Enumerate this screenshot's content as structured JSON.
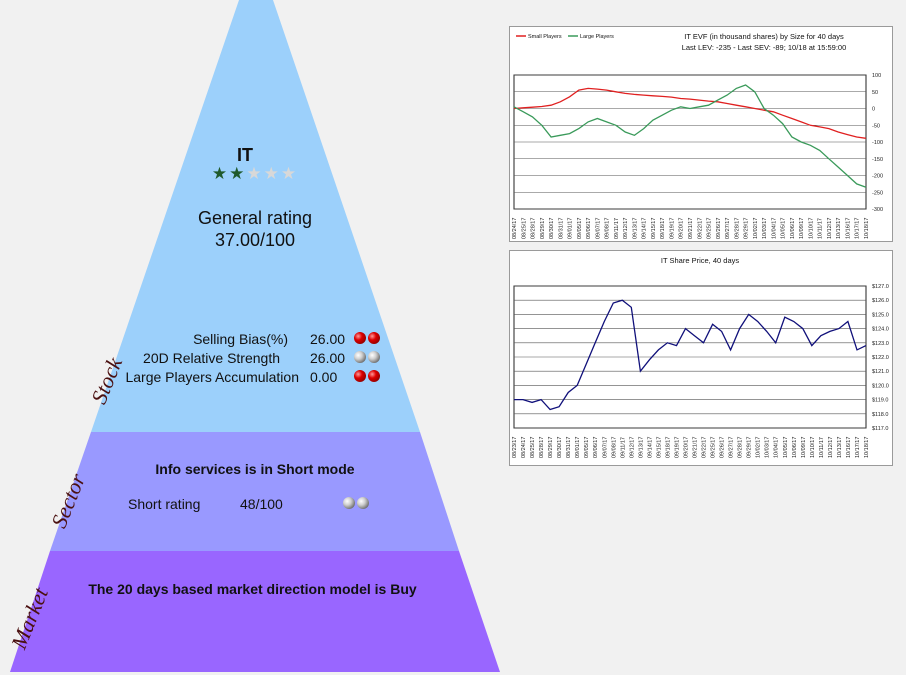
{
  "pyramid": {
    "ticker": "IT",
    "rating_stars": {
      "filled": 2,
      "total": 5,
      "filled_color": "#1f5a2c",
      "empty_color": "#d8d8d8"
    },
    "general_rating_label": "General rating",
    "general_rating_value": "37.00/100",
    "colors": {
      "stock": "#9cd0fb",
      "sector": "#9999ff",
      "market": "#9966ff"
    },
    "stock": {
      "label": "Stock",
      "rows": [
        {
          "name": "Selling Bias(%)",
          "value": "26.00",
          "dots": [
            "red",
            "red"
          ]
        },
        {
          "name": "20D Relative Strength",
          "value": "26.00",
          "dots": [
            "grey",
            "grey"
          ]
        },
        {
          "name": "Large Players Accumulation",
          "value": "0.00",
          "dots": [
            "red",
            "red"
          ]
        }
      ]
    },
    "sector": {
      "label": "Sector",
      "headline": "Info services is in Short mode",
      "short_rating_label": "Short rating",
      "short_rating_value": "48/100",
      "dots": [
        "grey",
        "grey"
      ]
    },
    "market": {
      "label": "Market",
      "headline": "The 20 days based market direction model is Buy"
    }
  },
  "chart_data": [
    {
      "type": "line",
      "title": "IT EVF (in thousand shares) by Size for 40 days",
      "subtitle": "Last LEV: -235 - Last SEV: -89; 10/18 at 15:59:00",
      "legend_position": "top-left",
      "ylim": [
        -300,
        100
      ],
      "yticks": [
        100,
        50,
        0,
        -50,
        -100,
        -150,
        -200,
        -250,
        -300
      ],
      "grid": true,
      "x": [
        "08/24/17",
        "08/25/17",
        "08/28/17",
        "08/29/17",
        "08/30/17",
        "08/31/17",
        "09/01/17",
        "09/05/17",
        "09/06/17",
        "09/07/17",
        "09/08/17",
        "09/11/17",
        "09/12/17",
        "09/13/17",
        "09/14/17",
        "09/15/17",
        "09/18/17",
        "09/19/17",
        "09/20/17",
        "09/21/17",
        "09/22/17",
        "09/25/17",
        "09/26/17",
        "09/27/17",
        "09/28/17",
        "09/29/17",
        "10/02/17",
        "10/03/17",
        "10/04/17",
        "10/05/17",
        "10/06/17",
        "10/09/17",
        "10/10/17",
        "10/11/17",
        "10/12/17",
        "10/13/17",
        "10/16/17",
        "10/17/17",
        "10/18/17"
      ],
      "series": [
        {
          "name": "Small Players",
          "color": "#e02020",
          "values": [
            0,
            2,
            4,
            6,
            10,
            20,
            35,
            55,
            60,
            58,
            55,
            50,
            45,
            42,
            40,
            38,
            36,
            34,
            30,
            28,
            25,
            22,
            20,
            15,
            10,
            5,
            0,
            -5,
            -10,
            -20,
            -30,
            -40,
            -50,
            -55,
            -60,
            -70,
            -78,
            -85,
            -89
          ]
        },
        {
          "name": "Large Players",
          "color": "#3a9a5a",
          "values": [
            5,
            -10,
            -25,
            -50,
            -85,
            -80,
            -75,
            -60,
            -40,
            -30,
            -40,
            -50,
            -70,
            -80,
            -60,
            -35,
            -20,
            -5,
            5,
            0,
            5,
            10,
            25,
            40,
            60,
            70,
            50,
            0,
            -20,
            -45,
            -85,
            -100,
            -110,
            -125,
            -150,
            -175,
            -200,
            -225,
            -235
          ]
        }
      ]
    },
    {
      "type": "line",
      "title": "IT Share Price, 40 days",
      "ylim": [
        117,
        127
      ],
      "yticks": [
        "$127.0",
        "$126.0",
        "$125.0",
        "$124.0",
        "$123.0",
        "$122.0",
        "$121.0",
        "$120.0",
        "$119.0",
        "$118.0",
        "$117.0"
      ],
      "grid": true,
      "x": [
        "08/23/17",
        "08/24/17",
        "08/25/17",
        "08/28/17",
        "08/29/17",
        "08/30/17",
        "08/31/17",
        "09/01/17",
        "09/05/17",
        "09/06/17",
        "09/07/17",
        "09/08/17",
        "09/11/17",
        "09/12/17",
        "09/13/17",
        "09/14/17",
        "09/15/17",
        "09/18/17",
        "09/19/17",
        "09/20/17",
        "09/21/17",
        "09/22/17",
        "09/25/17",
        "09/26/17",
        "09/27/17",
        "09/28/17",
        "09/29/17",
        "10/02/17",
        "10/03/17",
        "10/04/17",
        "10/05/17",
        "10/06/17",
        "10/09/17",
        "10/10/17",
        "10/11/17",
        "10/12/17",
        "10/13/17",
        "10/16/17",
        "10/17/17",
        "10/18/17"
      ],
      "series": [
        {
          "name": "",
          "color": "#10107a",
          "values": [
            119.0,
            119.0,
            118.8,
            119.0,
            118.3,
            118.5,
            119.5,
            120.0,
            121.5,
            123.0,
            124.5,
            125.8,
            126.0,
            125.5,
            121.0,
            121.8,
            122.5,
            123.0,
            122.8,
            124.0,
            123.5,
            123.0,
            124.3,
            123.8,
            122.5,
            124.0,
            125.0,
            124.5,
            123.8,
            123.0,
            124.8,
            124.5,
            124.0,
            122.8,
            123.5,
            123.8,
            124.0,
            124.5,
            122.5,
            122.8
          ]
        }
      ]
    }
  ]
}
